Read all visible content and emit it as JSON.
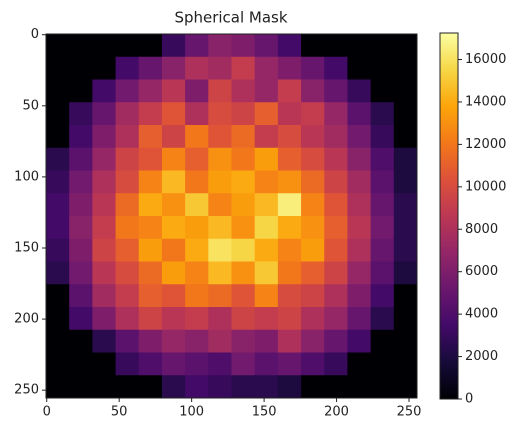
{
  "chart_data": {
    "type": "heatmap",
    "title": "Spherical Mask",
    "cmap": "inferno",
    "xlim": [
      -0.5,
      255.5
    ],
    "ylim": [
      255.5,
      -0.5
    ],
    "xticks": [
      0,
      50,
      100,
      150,
      200,
      250
    ],
    "yticks": [
      0,
      50,
      100,
      150,
      200,
      250
    ],
    "clim": [
      0,
      17250
    ],
    "cticks": [
      0,
      2000,
      4000,
      6000,
      8000,
      10000,
      12000,
      14000,
      16000
    ],
    "z": [
      [
        0,
        0,
        0,
        0,
        0,
        3000,
        5000,
        6500,
        6000,
        5000,
        3500,
        0,
        0,
        0,
        0,
        0
      ],
      [
        0,
        0,
        0,
        3500,
        5000,
        6500,
        8000,
        7500,
        9000,
        7000,
        6000,
        5000,
        3500,
        0,
        0,
        0
      ],
      [
        0,
        0,
        3500,
        5500,
        7000,
        8500,
        6000,
        9500,
        8000,
        7000,
        9000,
        6500,
        5000,
        3000,
        0,
        0
      ],
      [
        0,
        3000,
        5000,
        7500,
        9000,
        10500,
        8000,
        10000,
        9500,
        11000,
        8500,
        9000,
        7000,
        4500,
        2500,
        0
      ],
      [
        0,
        3500,
        6000,
        8000,
        11000,
        9500,
        12000,
        10500,
        11500,
        9000,
        10000,
        8500,
        7500,
        5500,
        3000,
        0
      ],
      [
        2500,
        4500,
        7000,
        9500,
        10500,
        12500,
        11000,
        13000,
        12000,
        13500,
        11000,
        10000,
        8500,
        6500,
        4000,
        2000
      ],
      [
        3000,
        5500,
        8000,
        10000,
        12500,
        14500,
        12000,
        13500,
        14000,
        12500,
        13000,
        11500,
        9500,
        7500,
        4500,
        2000
      ],
      [
        3500,
        6000,
        8500,
        11500,
        14000,
        13000,
        15000,
        12500,
        13500,
        14500,
        16500,
        12500,
        10500,
        8000,
        5000,
        2500
      ],
      [
        3500,
        6500,
        9000,
        12000,
        12500,
        14000,
        13500,
        14500,
        13000,
        15500,
        14000,
        13000,
        11000,
        8500,
        5500,
        2500
      ],
      [
        3000,
        6000,
        9500,
        11000,
        13500,
        12000,
        14000,
        16000,
        15500,
        14000,
        12500,
        13500,
        10500,
        8000,
        5000,
        2500
      ],
      [
        2500,
        5500,
        8500,
        10000,
        11500,
        13500,
        12500,
        14500,
        13000,
        15000,
        12000,
        11000,
        9500,
        7000,
        4500,
        2000
      ],
      [
        0,
        4500,
        7500,
        9000,
        11000,
        10500,
        12000,
        11500,
        10500,
        12500,
        10000,
        9500,
        8000,
        6000,
        3500,
        0
      ],
      [
        0,
        3500,
        6000,
        8000,
        9500,
        8500,
        9000,
        8000,
        9500,
        9000,
        9500,
        8000,
        7000,
        5000,
        2500,
        0
      ],
      [
        0,
        0,
        2500,
        4500,
        6000,
        7000,
        6500,
        7500,
        6500,
        6000,
        8000,
        6500,
        5000,
        3500,
        0,
        0
      ],
      [
        0,
        0,
        0,
        3000,
        4000,
        5000,
        4500,
        4000,
        5500,
        4500,
        5000,
        4000,
        3000,
        0,
        0,
        0
      ],
      [
        0,
        0,
        0,
        0,
        0,
        2500,
        3500,
        3000,
        2500,
        2500,
        2000,
        0,
        0,
        0,
        0,
        0
      ]
    ]
  }
}
